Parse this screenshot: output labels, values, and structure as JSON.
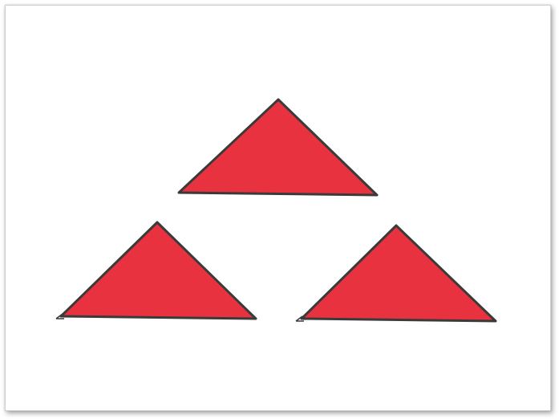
{
  "shapes": [
    {
      "name": "top-triangle",
      "shape": "triangle"
    },
    {
      "name": "bottom-left-triangle",
      "shape": "triangle"
    },
    {
      "name": "bottom-right-triangle",
      "shape": "triangle"
    }
  ],
  "colors": {
    "fill": "#e8323f",
    "stroke": "#3a3a3a",
    "frame_border": "#cfcfcf",
    "background": "#ffffff"
  }
}
